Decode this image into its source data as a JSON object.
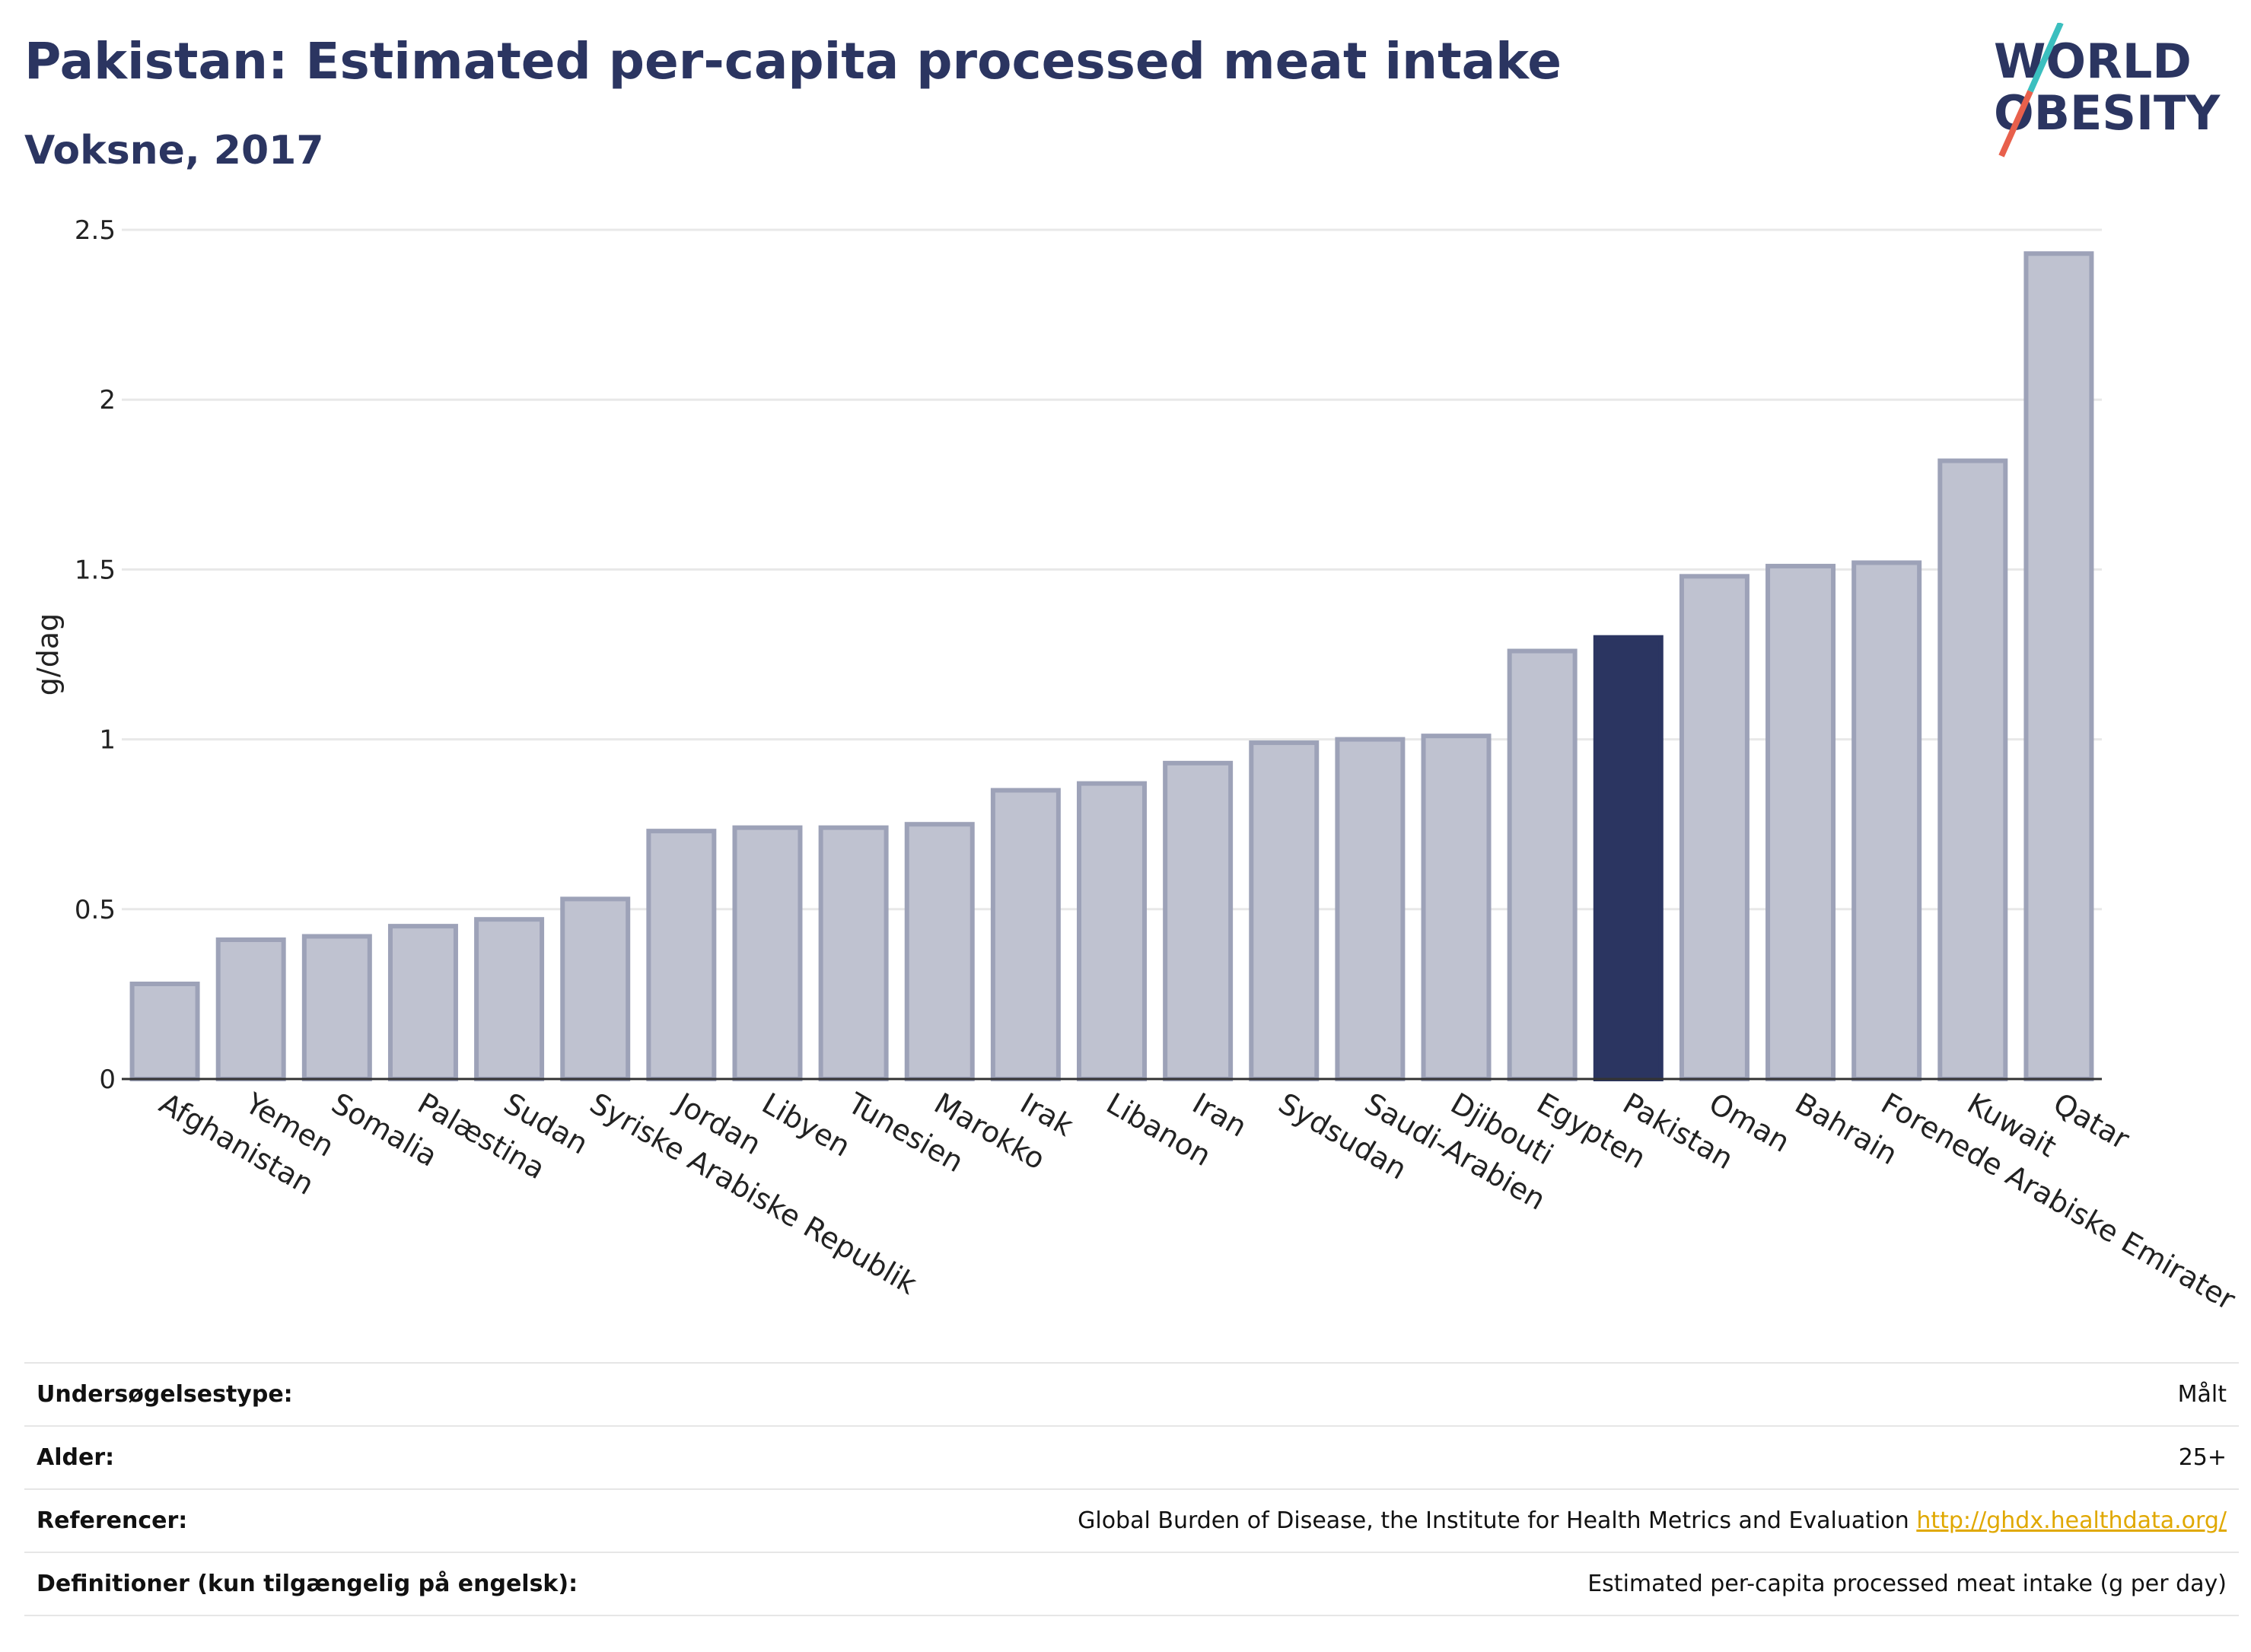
{
  "header": {
    "title": "Pakistan: Estimated per-capita processed meat intake",
    "subtitle": "Voksne, 2017"
  },
  "logo": {
    "line1": "WORLD",
    "line2": "OBESITY"
  },
  "colors": {
    "highlight": "#2b3561",
    "bar_fill": "#bfc2d0",
    "bar_stroke": "#9da2b8",
    "grid": "#e8e8e8",
    "axis": "#333333",
    "logo_slash_teal": "#3bbfbf",
    "logo_slash_red": "#e8604c"
  },
  "chart_data": {
    "type": "bar",
    "ylabel": "g/dag",
    "ylim": [
      0,
      2.5
    ],
    "yticks": [
      0,
      0.5,
      1,
      1.5,
      2,
      2.5
    ],
    "ytick_labels": [
      "0",
      "0.5",
      "1",
      "1.5",
      "2",
      "2.5"
    ],
    "highlight": "Pakistan",
    "grid": true,
    "categories": [
      "Afghanistan",
      "Yemen",
      "Somalia",
      "Palæstina",
      "Sudan",
      "Syriske Arabiske Republik",
      "Jordan",
      "Libyen",
      "Tunesien",
      "Marokko",
      "Irak",
      "Libanon",
      "Iran",
      "Sydsudan",
      "Saudi-Arabien",
      "Djibouti",
      "Egypten",
      "Pakistan",
      "Oman",
      "Bahrain",
      "Forenede Arabiske Emirater",
      "Kuwait",
      "Qatar"
    ],
    "values": [
      0.28,
      0.41,
      0.42,
      0.45,
      0.47,
      0.53,
      0.73,
      0.74,
      0.74,
      0.75,
      0.85,
      0.87,
      0.93,
      0.99,
      1.0,
      1.01,
      1.26,
      1.3,
      1.48,
      1.51,
      1.52,
      1.82,
      2.43
    ]
  },
  "info": [
    {
      "label": "Undersøgelsestype:",
      "value": "Målt"
    },
    {
      "label": "Alder:",
      "value": "25+"
    },
    {
      "label": "Referencer:",
      "value": "Global Burden of Disease, the Institute for Health Metrics and Evaluation",
      "link": "http://ghdx.healthdata.org/"
    },
    {
      "label": "Definitioner (kun tilgængelig på engelsk):",
      "value": "Estimated per-capita processed meat intake (g per day)"
    }
  ]
}
